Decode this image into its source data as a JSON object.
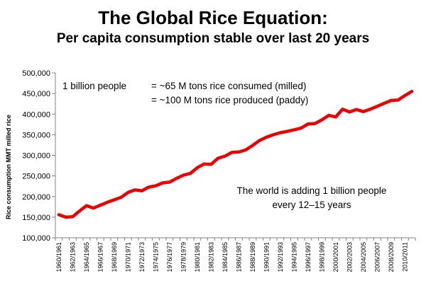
{
  "header": {
    "title": "The Global Rice Equation:",
    "subtitle": "Per capita consumption stable over last 20 years"
  },
  "annotations": {
    "line1_left": "1 billion people",
    "line1_right": "= ~65 M tons rice consumed (milled)",
    "line2_right": "= ~100 M tons rice produced (paddy)",
    "note_line1": "The world is adding 1 billion people",
    "note_line2": "every 12–15 years"
  },
  "chart_data": {
    "type": "line",
    "title": "The Global Rice Equation:",
    "subtitle": "Per capita consumption stable over last 20 years",
    "ylabel": "Rice consumption MMT milled rice",
    "xlabel": "",
    "ylim": [
      100000,
      500000
    ],
    "yticks": [
      100000,
      150000,
      200000,
      250000,
      300000,
      350000,
      400000,
      450000,
      500000
    ],
    "ytick_labels": [
      "100,000",
      "150,000",
      "200,000",
      "250,000",
      "300,000",
      "350,000",
      "400,000",
      "450,000",
      "500,000"
    ],
    "grid": false,
    "line_color": "#ee0000",
    "x": [
      "1960/1961",
      "1961/1962",
      "1962/1963",
      "1963/1964",
      "1964/1965",
      "1965/1966",
      "1966/1967",
      "1967/1968",
      "1968/1969",
      "1969/1970",
      "1970/1971",
      "1971/1972",
      "1972/1973",
      "1973/1974",
      "1974/1975",
      "1975/1976",
      "1976/1977",
      "1977/1978",
      "1978/1979",
      "1979/1980",
      "1980/1981",
      "1981/1982",
      "1982/1983",
      "1983/1984",
      "1984/1985",
      "1985/1986",
      "1986/1987",
      "1987/1988",
      "1988/1989",
      "1989/1990",
      "1990/1991",
      "1991/1992",
      "1992/1993",
      "1993/1994",
      "1994/1995",
      "1995/1996",
      "1996/1997",
      "1997/1998",
      "1998/1999",
      "1999/2000",
      "2000/2001",
      "2001/2002",
      "2002/2003",
      "2003/2004",
      "2004/2005",
      "2005/2006",
      "2006/2007",
      "2007/2008",
      "2008/2009",
      "2009/2010",
      "2010/2011",
      "2011/2012"
    ],
    "x_tick_labels": [
      "1960/1961",
      "1962/1963",
      "1964/1965",
      "1966/1967",
      "1968/1969",
      "1970/1971",
      "1972/1973",
      "1974/1975",
      "1976/1977",
      "1978/1979",
      "1980/1981",
      "1982/1983",
      "1984/1985",
      "1986/1987",
      "1988/1989",
      "1990/1991",
      "1992/1993",
      "1994/1995",
      "1996/1997",
      "1998/1999",
      "2000/2001",
      "2002/2003",
      "2004/2005",
      "2006/2007",
      "2008/2009",
      "2010/2011"
    ],
    "series": [
      {
        "values": [
          156000,
          150000,
          151000,
          165000,
          178000,
          172000,
          179000,
          186000,
          192000,
          198000,
          210000,
          216000,
          214000,
          223000,
          226000,
          233000,
          235000,
          244000,
          252000,
          256000,
          270000,
          279000,
          278000,
          293000,
          298000,
          307000,
          308000,
          313000,
          324000,
          336000,
          344000,
          350000,
          355000,
          358000,
          362000,
          366000,
          376000,
          377000,
          386000,
          397000,
          393000,
          412000,
          405000,
          411000,
          406000,
          412000,
          419000,
          426000,
          433000,
          434000,
          445000,
          455000
        ]
      }
    ]
  }
}
